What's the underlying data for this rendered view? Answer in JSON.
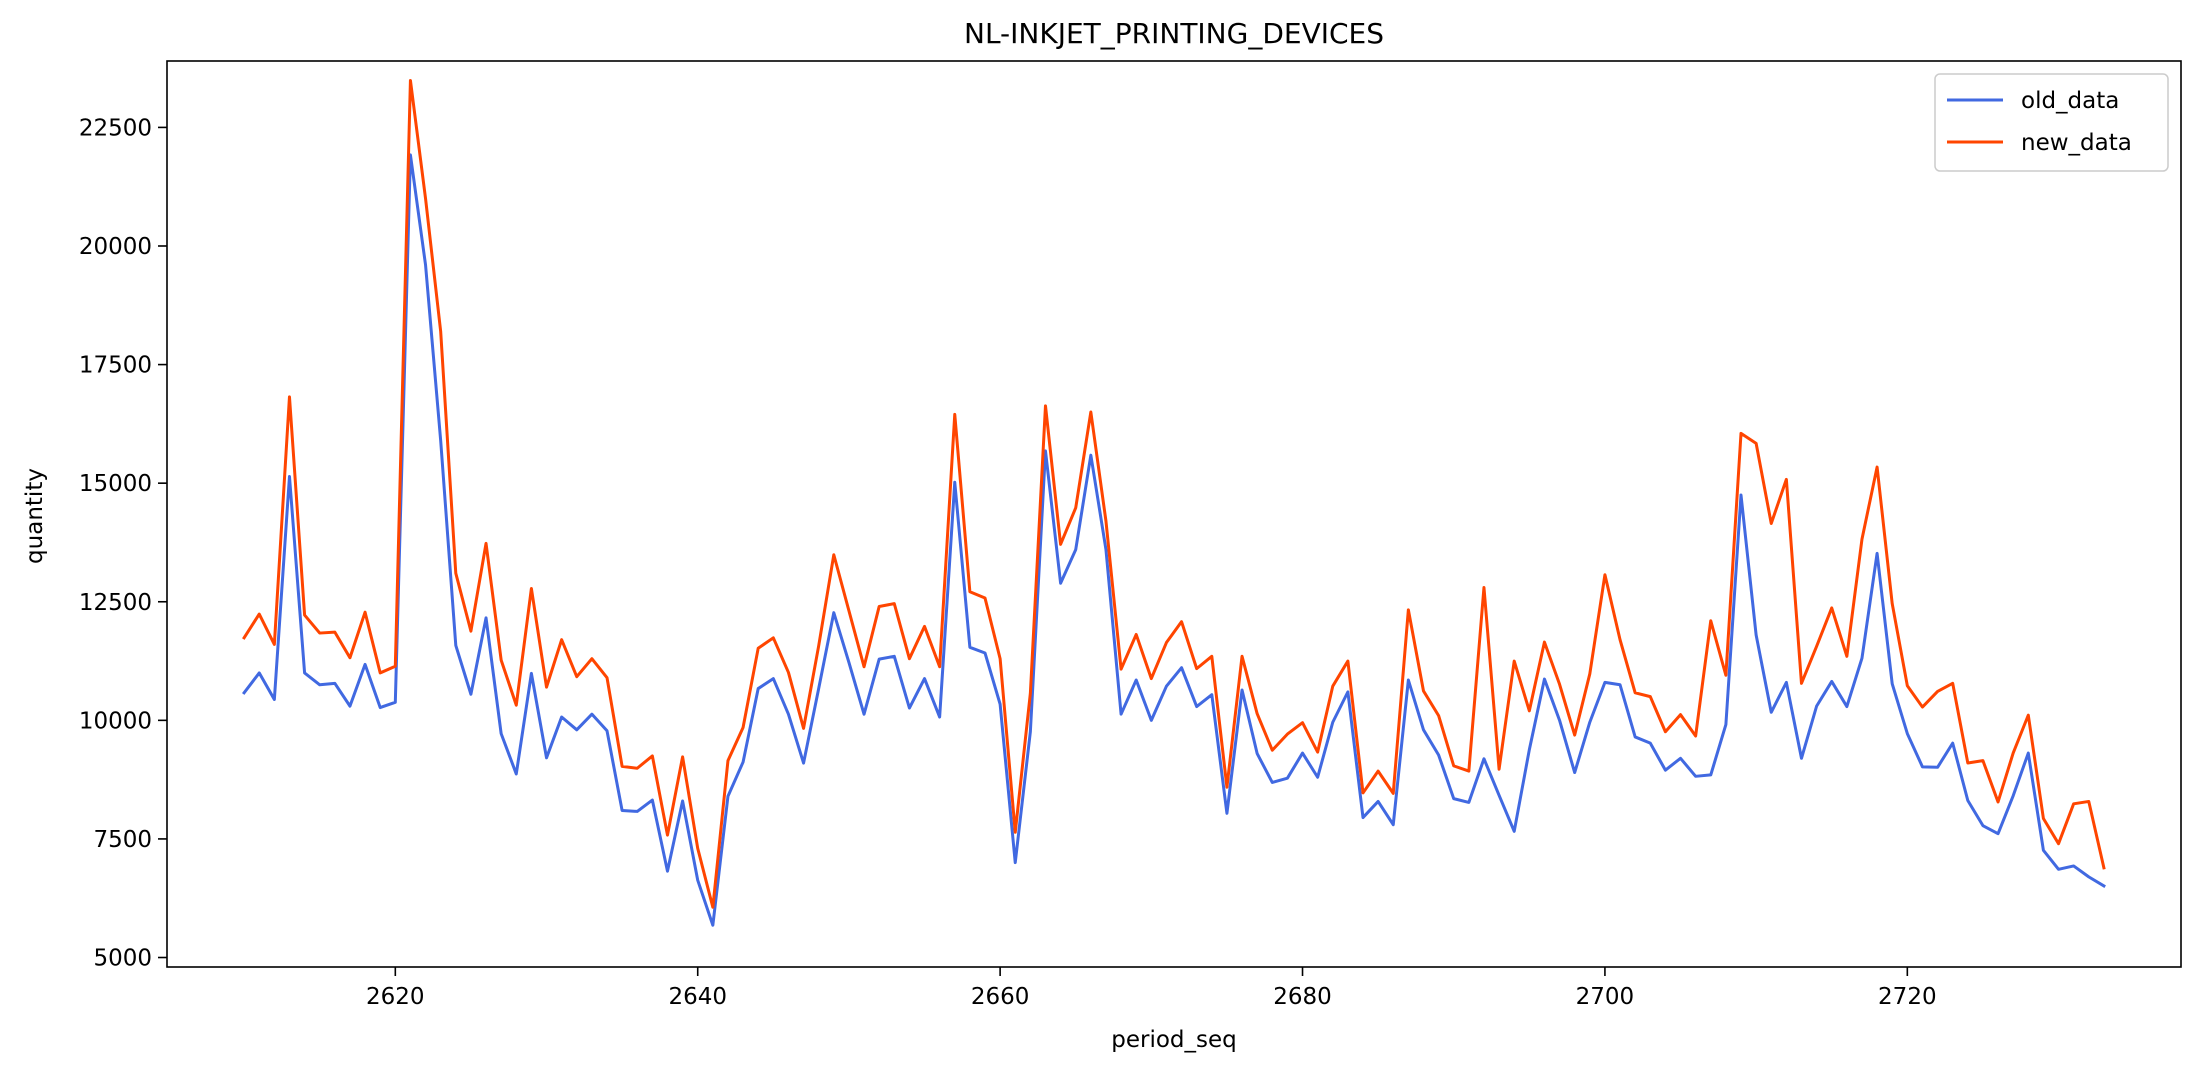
{
  "chart_data": {
    "type": "line",
    "title": "NL-INKJET_PRINTING_DEVICES",
    "xlabel": "period_seq",
    "ylabel": "quantity",
    "xlim": [
      2604.9,
      2738.1
    ],
    "ylim": [
      4800,
      23900
    ],
    "xticks": [
      2620,
      2640,
      2660,
      2680,
      2700,
      2720
    ],
    "yticks": [
      5000,
      7500,
      10000,
      12500,
      15000,
      17500,
      20000,
      22500
    ],
    "grid": false,
    "legend_position": "top-right",
    "x": [
      2610,
      2611,
      2612,
      2613,
      2614,
      2615,
      2616,
      2617,
      2618,
      2619,
      2620,
      2621,
      2622,
      2623,
      2624,
      2625,
      2626,
      2627,
      2628,
      2629,
      2630,
      2631,
      2632,
      2633,
      2634,
      2635,
      2636,
      2637,
      2638,
      2639,
      2640,
      2641,
      2642,
      2643,
      2644,
      2645,
      2646,
      2647,
      2648,
      2649,
      2650,
      2651,
      2652,
      2653,
      2654,
      2655,
      2656,
      2657,
      2658,
      2659,
      2660,
      2661,
      2662,
      2663,
      2664,
      2665,
      2666,
      2667,
      2668,
      2669,
      2670,
      2671,
      2672,
      2673,
      2674,
      2675,
      2676,
      2677,
      2678,
      2679,
      2680,
      2681,
      2682,
      2683,
      2684,
      2685,
      2686,
      2687,
      2688,
      2689,
      2690,
      2691,
      2692,
      2693,
      2694,
      2695,
      2696,
      2697,
      2698,
      2699,
      2700,
      2701,
      2702,
      2703,
      2704,
      2705,
      2706,
      2707,
      2708,
      2709,
      2710,
      2711,
      2712,
      2713,
      2714,
      2715,
      2716,
      2717,
      2718,
      2719,
      2720,
      2721,
      2722,
      2723,
      2724,
      2725,
      2726,
      2727,
      2728,
      2729,
      2730,
      2731,
      2732,
      2733
    ],
    "series": [
      {
        "name": "old_data",
        "color": "#4169e1",
        "values": [
          10580,
          11000,
          10440,
          15140,
          11000,
          10750,
          10780,
          10300,
          11180,
          10270,
          10380,
          21920,
          19600,
          15900,
          11580,
          10550,
          12160,
          9720,
          8870,
          10990,
          9210,
          10070,
          9800,
          10130,
          9780,
          8100,
          8080,
          8320,
          6820,
          8300,
          6630,
          5680,
          8400,
          9120,
          10670,
          10880,
          10130,
          9100,
          10670,
          12270,
          11220,
          10130,
          11290,
          11350,
          10260,
          10880,
          10070,
          15020,
          11540,
          11420,
          10340,
          7000,
          9760,
          15680,
          12890,
          13600,
          15590,
          13600,
          10130,
          10850,
          10000,
          10720,
          11110,
          10290,
          10540,
          8040,
          10640,
          9300,
          8690,
          8780,
          9310,
          8800,
          9960,
          10600,
          7950,
          8290,
          7800,
          10850,
          9800,
          9270,
          8350,
          8270,
          9190,
          8420,
          7660,
          9380,
          10870,
          10000,
          8900,
          9960,
          10800,
          10750,
          9650,
          9520,
          8950,
          9200,
          8820,
          8850,
          9910,
          14750,
          11800,
          10170,
          10800,
          9200,
          10300,
          10820,
          10290,
          11310,
          13520,
          10770,
          9720,
          9020,
          9010,
          9520,
          8310,
          7780,
          7610,
          8410,
          9310,
          7260,
          6860,
          6930,
          6700,
          6510
        ]
      },
      {
        "name": "new_data",
        "color": "#ff4500",
        "values": [
          11740,
          12240,
          11600,
          16820,
          12220,
          11840,
          11860,
          11320,
          12280,
          11000,
          11140,
          23490,
          21000,
          18200,
          13100,
          11880,
          13730,
          11270,
          10320,
          12780,
          10700,
          11700,
          10920,
          11300,
          10900,
          9030,
          8990,
          9250,
          7580,
          9230,
          7300,
          6060,
          9150,
          9850,
          11520,
          11740,
          11010,
          9830,
          11570,
          13490,
          12310,
          11130,
          12400,
          12460,
          11300,
          11980,
          11130,
          16450,
          12710,
          12580,
          11300,
          7640,
          10570,
          16630,
          13710,
          14480,
          16500,
          14200,
          11080,
          11810,
          10880,
          11640,
          12080,
          11090,
          11350,
          8590,
          11350,
          10140,
          9370,
          9710,
          9950,
          9330,
          10720,
          11250,
          8470,
          8930,
          8460,
          12330,
          10620,
          10100,
          9040,
          8930,
          12800,
          8970,
          11250,
          10200,
          11650,
          10760,
          9690,
          10980,
          13070,
          11700,
          10580,
          10500,
          9760,
          10120,
          9670,
          12100,
          10950,
          16050,
          15840,
          14150,
          15080,
          10780,
          11560,
          12370,
          11350,
          13820,
          15340,
          12460,
          10730,
          10280,
          10610,
          10780,
          9100,
          9150,
          8280,
          9310,
          10110,
          7930,
          7400,
          8240,
          8290,
          6890
        ]
      }
    ]
  }
}
